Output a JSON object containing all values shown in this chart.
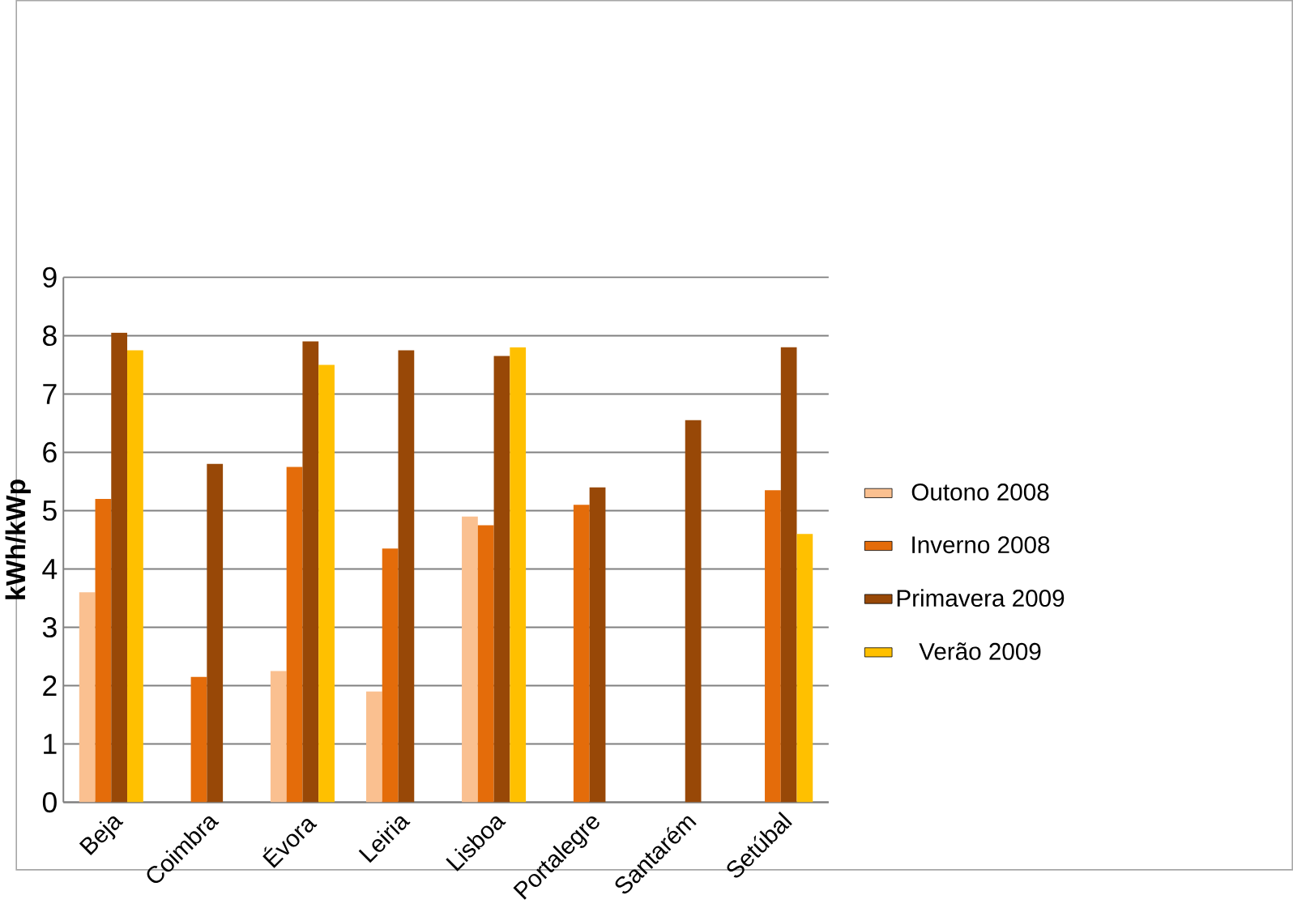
{
  "chart_data": {
    "type": "bar",
    "ylabel": "kWh/kWp",
    "categories": [
      "Beja",
      "Coimbra",
      "Évora",
      "Leiria",
      "Lisboa",
      "Portalegre",
      "Santarém",
      "Setúbal"
    ],
    "series": [
      {
        "name": "Outono 2008",
        "color": "#fac090",
        "values": [
          3.6,
          null,
          2.25,
          1.9,
          4.9,
          null,
          null,
          null
        ]
      },
      {
        "name": "Inverno 2008",
        "color": "#e46c0a",
        "values": [
          5.2,
          2.15,
          5.75,
          4.35,
          4.75,
          5.1,
          null,
          5.35
        ]
      },
      {
        "name": "Primavera 2009",
        "color": "#984807",
        "values": [
          8.05,
          5.8,
          7.9,
          7.75,
          7.65,
          5.4,
          6.55,
          7.8
        ]
      },
      {
        "name": "Verão 2009",
        "color": "#ffc000",
        "values": [
          7.75,
          null,
          7.5,
          null,
          7.8,
          null,
          null,
          4.6
        ]
      }
    ],
    "ylim": [
      0,
      9
    ],
    "yticks": [
      0,
      1,
      2,
      3,
      4,
      5,
      6,
      7,
      8,
      9
    ],
    "grid": "y",
    "legend": "right"
  }
}
